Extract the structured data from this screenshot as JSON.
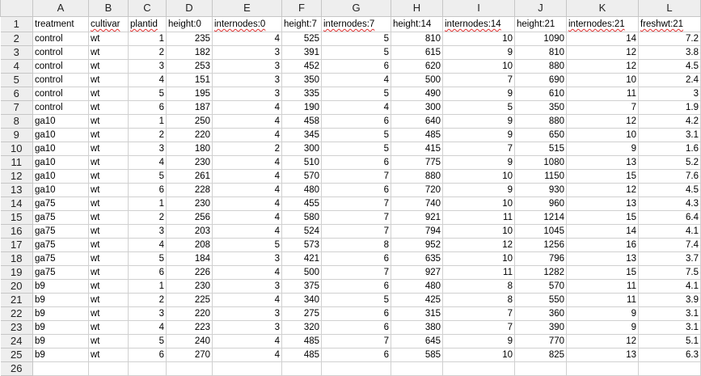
{
  "columns": [
    "A",
    "B",
    "C",
    "D",
    "E",
    "F",
    "G",
    "H",
    "I",
    "J",
    "K",
    "L"
  ],
  "row_numbers": [
    "1",
    "2",
    "3",
    "4",
    "5",
    "6",
    "7",
    "8",
    "9",
    "10",
    "11",
    "12",
    "13",
    "14",
    "15",
    "16",
    "17",
    "18",
    "19",
    "20",
    "21",
    "22",
    "23",
    "24",
    "25",
    "26"
  ],
  "header_row": [
    "treatment",
    "cultivar",
    "plantid",
    "height:0",
    "internodes:0",
    "height:7",
    "internodes:7",
    "height:14",
    "internodes:14",
    "height:21",
    "internodes:21",
    "freshwt:21"
  ],
  "spellcheck_headers": [
    1,
    2,
    4,
    6,
    8,
    10,
    11
  ],
  "data_rows": [
    [
      "control",
      "wt",
      "1",
      "235",
      "4",
      "525",
      "5",
      "810",
      "10",
      "1090",
      "14",
      "7.2"
    ],
    [
      "control",
      "wt",
      "2",
      "182",
      "3",
      "391",
      "5",
      "615",
      "9",
      "810",
      "12",
      "3.8"
    ],
    [
      "control",
      "wt",
      "3",
      "253",
      "3",
      "452",
      "6",
      "620",
      "10",
      "880",
      "12",
      "4.5"
    ],
    [
      "control",
      "wt",
      "4",
      "151",
      "3",
      "350",
      "4",
      "500",
      "7",
      "690",
      "10",
      "2.4"
    ],
    [
      "control",
      "wt",
      "5",
      "195",
      "3",
      "335",
      "5",
      "490",
      "9",
      "610",
      "11",
      "3"
    ],
    [
      "control",
      "wt",
      "6",
      "187",
      "4",
      "190",
      "4",
      "300",
      "5",
      "350",
      "7",
      "1.9"
    ],
    [
      "ga10",
      "wt",
      "1",
      "250",
      "4",
      "458",
      "6",
      "640",
      "9",
      "880",
      "12",
      "4.2"
    ],
    [
      "ga10",
      "wt",
      "2",
      "220",
      "4",
      "345",
      "5",
      "485",
      "9",
      "650",
      "10",
      "3.1"
    ],
    [
      "ga10",
      "wt",
      "3",
      "180",
      "2",
      "300",
      "5",
      "415",
      "7",
      "515",
      "9",
      "1.6"
    ],
    [
      "ga10",
      "wt",
      "4",
      "230",
      "4",
      "510",
      "6",
      "775",
      "9",
      "1080",
      "13",
      "5.2"
    ],
    [
      "ga10",
      "wt",
      "5",
      "261",
      "4",
      "570",
      "7",
      "880",
      "10",
      "1150",
      "15",
      "7.6"
    ],
    [
      "ga10",
      "wt",
      "6",
      "228",
      "4",
      "480",
      "6",
      "720",
      "9",
      "930",
      "12",
      "4.5"
    ],
    [
      "ga75",
      "wt",
      "1",
      "230",
      "4",
      "455",
      "7",
      "740",
      "10",
      "960",
      "13",
      "4.3"
    ],
    [
      "ga75",
      "wt",
      "2",
      "256",
      "4",
      "580",
      "7",
      "921",
      "11",
      "1214",
      "15",
      "6.4"
    ],
    [
      "ga75",
      "wt",
      "3",
      "203",
      "4",
      "524",
      "7",
      "794",
      "10",
      "1045",
      "14",
      "4.1"
    ],
    [
      "ga75",
      "wt",
      "4",
      "208",
      "5",
      "573",
      "8",
      "952",
      "12",
      "1256",
      "16",
      "7.4"
    ],
    [
      "ga75",
      "wt",
      "5",
      "184",
      "3",
      "421",
      "6",
      "635",
      "10",
      "796",
      "13",
      "3.7"
    ],
    [
      "ga75",
      "wt",
      "6",
      "226",
      "4",
      "500",
      "7",
      "927",
      "11",
      "1282",
      "15",
      "7.5"
    ],
    [
      "b9",
      "wt",
      "1",
      "230",
      "3",
      "375",
      "6",
      "480",
      "8",
      "570",
      "11",
      "4.1"
    ],
    [
      "b9",
      "wt",
      "2",
      "225",
      "4",
      "340",
      "5",
      "425",
      "8",
      "550",
      "11",
      "3.9"
    ],
    [
      "b9",
      "wt",
      "3",
      "220",
      "3",
      "275",
      "6",
      "315",
      "7",
      "360",
      "9",
      "3.1"
    ],
    [
      "b9",
      "wt",
      "4",
      "223",
      "3",
      "320",
      "6",
      "380",
      "7",
      "390",
      "9",
      "3.1"
    ],
    [
      "b9",
      "wt",
      "5",
      "240",
      "4",
      "485",
      "7",
      "645",
      "9",
      "770",
      "12",
      "5.1"
    ],
    [
      "b9",
      "wt",
      "6",
      "270",
      "4",
      "485",
      "6",
      "585",
      "10",
      "825",
      "13",
      "6.3"
    ]
  ]
}
